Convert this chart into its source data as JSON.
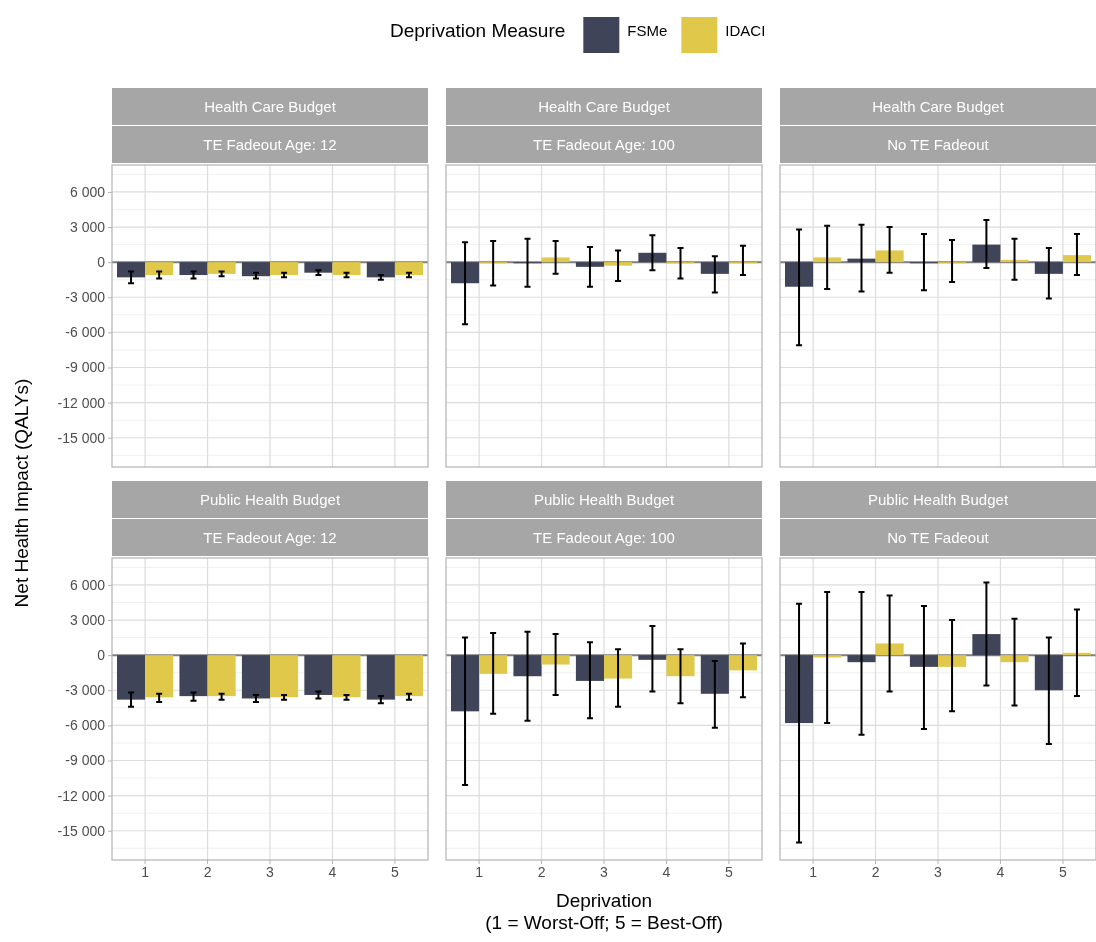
{
  "chart_data": [
    {
      "type": "bar",
      "title": "Health Care Budget",
      "subtitle": "TE Fadeout Age: 12",
      "categories": [
        "1",
        "2",
        "3",
        "4",
        "5"
      ],
      "legend": "top",
      "legend_title": "Deprivation Measure",
      "tick_labels": "y",
      "grid": true,
      "ylim": [
        -17500,
        8300
      ],
      "yticks": [
        {
          "value": -15000,
          "label": "-15 000"
        },
        {
          "value": -12000,
          "label": "-12 000"
        },
        {
          "value": -9000,
          "label": "-9 000"
        },
        {
          "value": -6000,
          "label": "-6 000"
        },
        {
          "value": -3000,
          "label": "-3 000"
        },
        0,
        {
          "value": 3000,
          "label": "3 000"
        },
        {
          "value": 6000,
          "label": "6 000"
        }
      ],
      "ref_lines": [
        {
          "axis": "y",
          "value": 0,
          "color": "#808080"
        }
      ],
      "series": [
        {
          "name": "FSMe",
          "color": "#3f4459",
          "values": [
            -1300,
            -1100,
            -1200,
            -900,
            -1300
          ],
          "errors": [
            [
              -1800,
              -800
            ],
            [
              -1400,
              -800
            ],
            [
              -1400,
              -900
            ],
            [
              -1100,
              -700
            ],
            [
              -1500,
              -1100
            ]
          ]
        },
        {
          "name": "IDACI",
          "color": "#e0c84a",
          "values": [
            -1100,
            -1000,
            -1100,
            -1100,
            -1100
          ],
          "errors": [
            [
              -1400,
              -800
            ],
            [
              -1200,
              -800
            ],
            [
              -1300,
              -900
            ],
            [
              -1300,
              -900
            ],
            [
              -1300,
              -900
            ]
          ]
        }
      ]
    },
    {
      "type": "bar",
      "title": "Health Care Budget",
      "subtitle": "TE Fadeout Age: 100",
      "categories": [
        "1",
        "2",
        "3",
        "4",
        "5"
      ],
      "tick_labels": false,
      "grid": true,
      "ylim": [
        -17500,
        8300
      ],
      "yticks": [
        {
          "value": -15000,
          "label": null
        },
        {
          "value": -12000,
          "label": null
        },
        {
          "value": -9000,
          "label": null
        },
        {
          "value": -6000,
          "label": null
        },
        {
          "value": -3000,
          "label": null
        },
        {
          "value": 0,
          "label": null
        },
        {
          "value": 3000,
          "label": null
        },
        {
          "value": 6000,
          "label": null
        }
      ],
      "ref_lines": [
        {
          "axis": "y",
          "value": 0,
          "color": "#808080"
        }
      ],
      "series": [
        {
          "color": "#3f4459",
          "values": [
            -1800,
            -100,
            -400,
            800,
            -1000
          ],
          "errors": [
            [
              -5300,
              1700
            ],
            [
              -2100,
              2000
            ],
            [
              -2100,
              1300
            ],
            [
              -700,
              2300
            ],
            [
              -2600,
              500
            ]
          ]
        },
        {
          "color": "#e0c84a",
          "values": [
            -100,
            400,
            -300,
            -100,
            -100
          ],
          "errors": [
            [
              -2000,
              1800
            ],
            [
              -1000,
              1800
            ],
            [
              -1600,
              1000
            ],
            [
              -1400,
              1200
            ],
            [
              -1100,
              1400
            ]
          ]
        }
      ]
    },
    {
      "type": "bar",
      "title": "Health Care Budget",
      "subtitle": "No TE Fadeout",
      "categories": [
        "1",
        "2",
        "3",
        "4",
        "5"
      ],
      "tick_labels": false,
      "grid": true,
      "ylim": [
        -17500,
        8300
      ],
      "yticks": [
        {
          "value": -15000,
          "label": null
        },
        {
          "value": -12000,
          "label": null
        },
        {
          "value": -9000,
          "label": null
        },
        {
          "value": -6000,
          "label": null
        },
        {
          "value": -3000,
          "label": null
        },
        {
          "value": 0,
          "label": null
        },
        {
          "value": 3000,
          "label": null
        },
        {
          "value": 6000,
          "label": null
        }
      ],
      "ref_lines": [
        {
          "axis": "y",
          "value": 0,
          "color": "#808080"
        }
      ],
      "series": [
        {
          "color": "#3f4459",
          "values": [
            -2100,
            300,
            -100,
            1500,
            -1000
          ],
          "errors": [
            [
              -7100,
              2800
            ],
            [
              -2500,
              3200
            ],
            [
              -2400,
              2400
            ],
            [
              -500,
              3600
            ],
            [
              -3100,
              1200
            ]
          ]
        },
        {
          "color": "#e0c84a",
          "values": [
            400,
            1000,
            -100,
            200,
            600
          ],
          "errors": [
            [
              -2300,
              3100
            ],
            [
              -900,
              3000
            ],
            [
              -1700,
              1900
            ],
            [
              -1500,
              2000
            ],
            [
              -1100,
              2400
            ]
          ]
        }
      ]
    },
    {
      "type": "bar",
      "title": "Public Health Budget",
      "subtitle": "TE Fadeout Age: 12",
      "categories": [
        "1",
        "2",
        "3",
        "4",
        "5"
      ],
      "ylabel": "Net Health Impact (QALYs)",
      "grid": true,
      "ylim": [
        -17500,
        8300
      ],
      "yticks": [
        {
          "value": -15000,
          "label": "-15 000"
        },
        {
          "value": -12000,
          "label": "-12 000"
        },
        {
          "value": -9000,
          "label": "-9 000"
        },
        {
          "value": -6000,
          "label": "-6 000"
        },
        {
          "value": -3000,
          "label": "-3 000"
        },
        0,
        {
          "value": 3000,
          "label": "3 000"
        },
        {
          "value": 6000,
          "label": "6 000"
        }
      ],
      "ref_lines": [
        {
          "axis": "y",
          "value": 0,
          "color": "#808080"
        }
      ],
      "series": [
        {
          "color": "#3f4459",
          "values": [
            -3800,
            -3500,
            -3700,
            -3400,
            -3800
          ],
          "errors": [
            [
              -4400,
              -3200
            ],
            [
              -3900,
              -3200
            ],
            [
              -4000,
              -3400
            ],
            [
              -3700,
              -3100
            ],
            [
              -4100,
              -3500
            ]
          ]
        },
        {
          "color": "#e0c84a",
          "values": [
            -3600,
            -3500,
            -3600,
            -3600,
            -3500
          ],
          "errors": [
            [
              -4000,
              -3300
            ],
            [
              -3800,
              -3300
            ],
            [
              -3800,
              -3400
            ],
            [
              -3800,
              -3400
            ],
            [
              -3800,
              -3300
            ]
          ]
        }
      ]
    },
    {
      "type": "bar",
      "title": "Public Health Budget",
      "subtitle": "TE Fadeout Age: 100",
      "categories": [
        "1",
        "2",
        "3",
        "4",
        "5"
      ],
      "xlabel": "Deprivation\n(1 = Worst-Off; 5 = Best-Off)",
      "tick_labels": "x",
      "grid": true,
      "ylim": [
        -17500,
        8300
      ],
      "yticks": [
        {
          "value": -15000,
          "label": null
        },
        {
          "value": -12000,
          "label": null
        },
        {
          "value": -9000,
          "label": null
        },
        {
          "value": -6000,
          "label": null
        },
        {
          "value": -3000,
          "label": null
        },
        {
          "value": 0,
          "label": null
        },
        {
          "value": 3000,
          "label": null
        },
        {
          "value": 6000,
          "label": null
        }
      ],
      "ref_lines": [
        {
          "axis": "y",
          "value": 0,
          "color": "#808080"
        }
      ],
      "series": [
        {
          "color": "#3f4459",
          "values": [
            -4800,
            -1800,
            -2200,
            -400,
            -3300
          ],
          "errors": [
            [
              -11100,
              1500
            ],
            [
              -5600,
              2000
            ],
            [
              -5400,
              1100
            ],
            [
              -3100,
              2500
            ],
            [
              -6200,
              -500
            ]
          ]
        },
        {
          "color": "#e0c84a",
          "values": [
            -1600,
            -800,
            -2000,
            -1800,
            -1300
          ],
          "errors": [
            [
              -5000,
              1900
            ],
            [
              -3400,
              1800
            ],
            [
              -4400,
              500
            ],
            [
              -4100,
              500
            ],
            [
              -3600,
              1000
            ]
          ]
        }
      ]
    },
    {
      "type": "bar",
      "title": "Public Health Budget",
      "subtitle": "No TE Fadeout",
      "categories": [
        "1",
        "2",
        "3",
        "4",
        "5"
      ],
      "tick_labels": "x",
      "grid": true,
      "ylim": [
        -17500,
        8300
      ],
      "yticks": [
        {
          "value": -15000,
          "label": null
        },
        {
          "value": -12000,
          "label": null
        },
        {
          "value": -9000,
          "label": null
        },
        {
          "value": -6000,
          "label": null
        },
        {
          "value": -3000,
          "label": null
        },
        {
          "value": 0,
          "label": null
        },
        {
          "value": 3000,
          "label": null
        },
        {
          "value": 6000,
          "label": null
        }
      ],
      "ref_lines": [
        {
          "axis": "y",
          "value": 0,
          "color": "#808080"
        }
      ],
      "series": [
        {
          "color": "#3f4459",
          "values": [
            -5800,
            -600,
            -1000,
            1800,
            -3000
          ],
          "errors": [
            [
              -16000,
              4400
            ],
            [
              -6800,
              5400
            ],
            [
              -6300,
              4200
            ],
            [
              -2600,
              6200
            ],
            [
              -7600,
              1500
            ]
          ]
        },
        {
          "color": "#e0c84a",
          "values": [
            -200,
            1000,
            -1000,
            -600,
            200
          ],
          "errors": [
            [
              -5800,
              5400
            ],
            [
              -3100,
              5100
            ],
            [
              -4800,
              3000
            ],
            [
              -4300,
              3100
            ],
            [
              -3500,
              3900
            ]
          ]
        }
      ]
    }
  ]
}
